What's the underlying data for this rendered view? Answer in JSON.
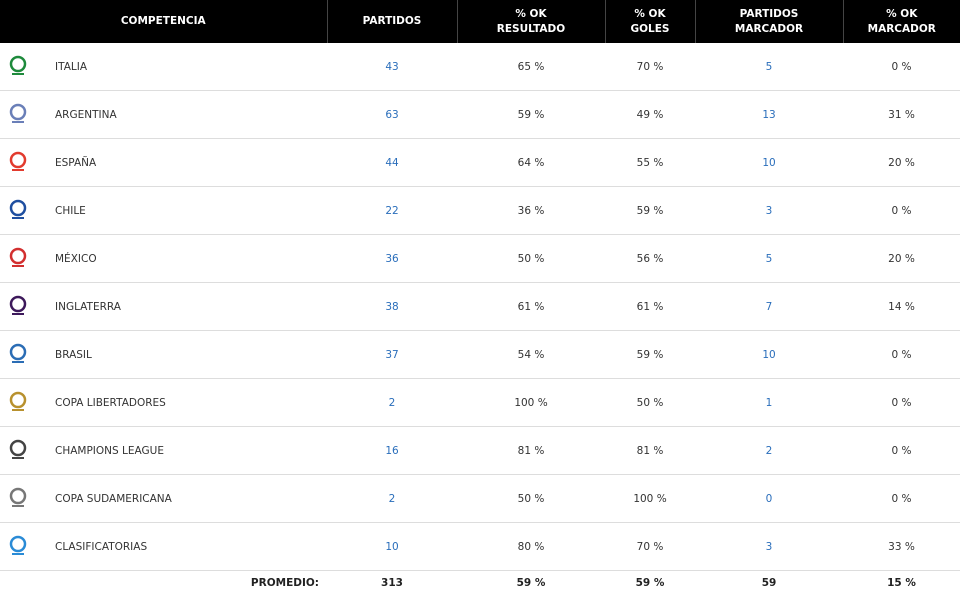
{
  "table": {
    "columns": [
      {
        "lines": [
          "COMPETENCIA"
        ]
      },
      {
        "lines": [
          "PARTIDOS"
        ]
      },
      {
        "lines": [
          "% OK",
          "RESULTADO"
        ]
      },
      {
        "lines": [
          "% OK",
          "GOLES"
        ]
      },
      {
        "lines": [
          "PARTIDOS",
          "MARCADOR"
        ]
      },
      {
        "lines": [
          "% OK",
          "MARCADOR"
        ]
      }
    ],
    "rows": [
      [
        "ITALIA",
        "43",
        "65 %",
        "70 %",
        "5",
        "0 %"
      ],
      [
        "ARGENTINA",
        "63",
        "59 %",
        "49 %",
        "13",
        "31 %"
      ],
      [
        "ESPAÑA",
        "44",
        "64 %",
        "55 %",
        "10",
        "20 %"
      ],
      [
        "CHILE",
        "22",
        "36 %",
        "59 %",
        "3",
        "0 %"
      ],
      [
        "MÉXICO",
        "36",
        "50 %",
        "56 %",
        "5",
        "20 %"
      ],
      [
        "INGLATERRA",
        "38",
        "61 %",
        "61 %",
        "7",
        "14 %"
      ],
      [
        "BRASIL",
        "37",
        "54 %",
        "59 %",
        "10",
        "0 %"
      ],
      [
        "COPA LIBERTADORES",
        "2",
        "100 %",
        "50 %",
        "1",
        "0 %"
      ],
      [
        "CHAMPIONS LEAGUE",
        "16",
        "81 %",
        "81 %",
        "2",
        "0 %"
      ],
      [
        "COPA SUDAMERICANA",
        "2",
        "50 %",
        "100 %",
        "0",
        "0 %"
      ],
      [
        "CLASIFICATORIAS",
        "10",
        "80 %",
        "70 %",
        "3",
        "33 %"
      ]
    ],
    "footer": [
      "PROMEDIO:",
      "313",
      "59 %",
      "59 %",
      "59",
      "15 %"
    ]
  }
}
